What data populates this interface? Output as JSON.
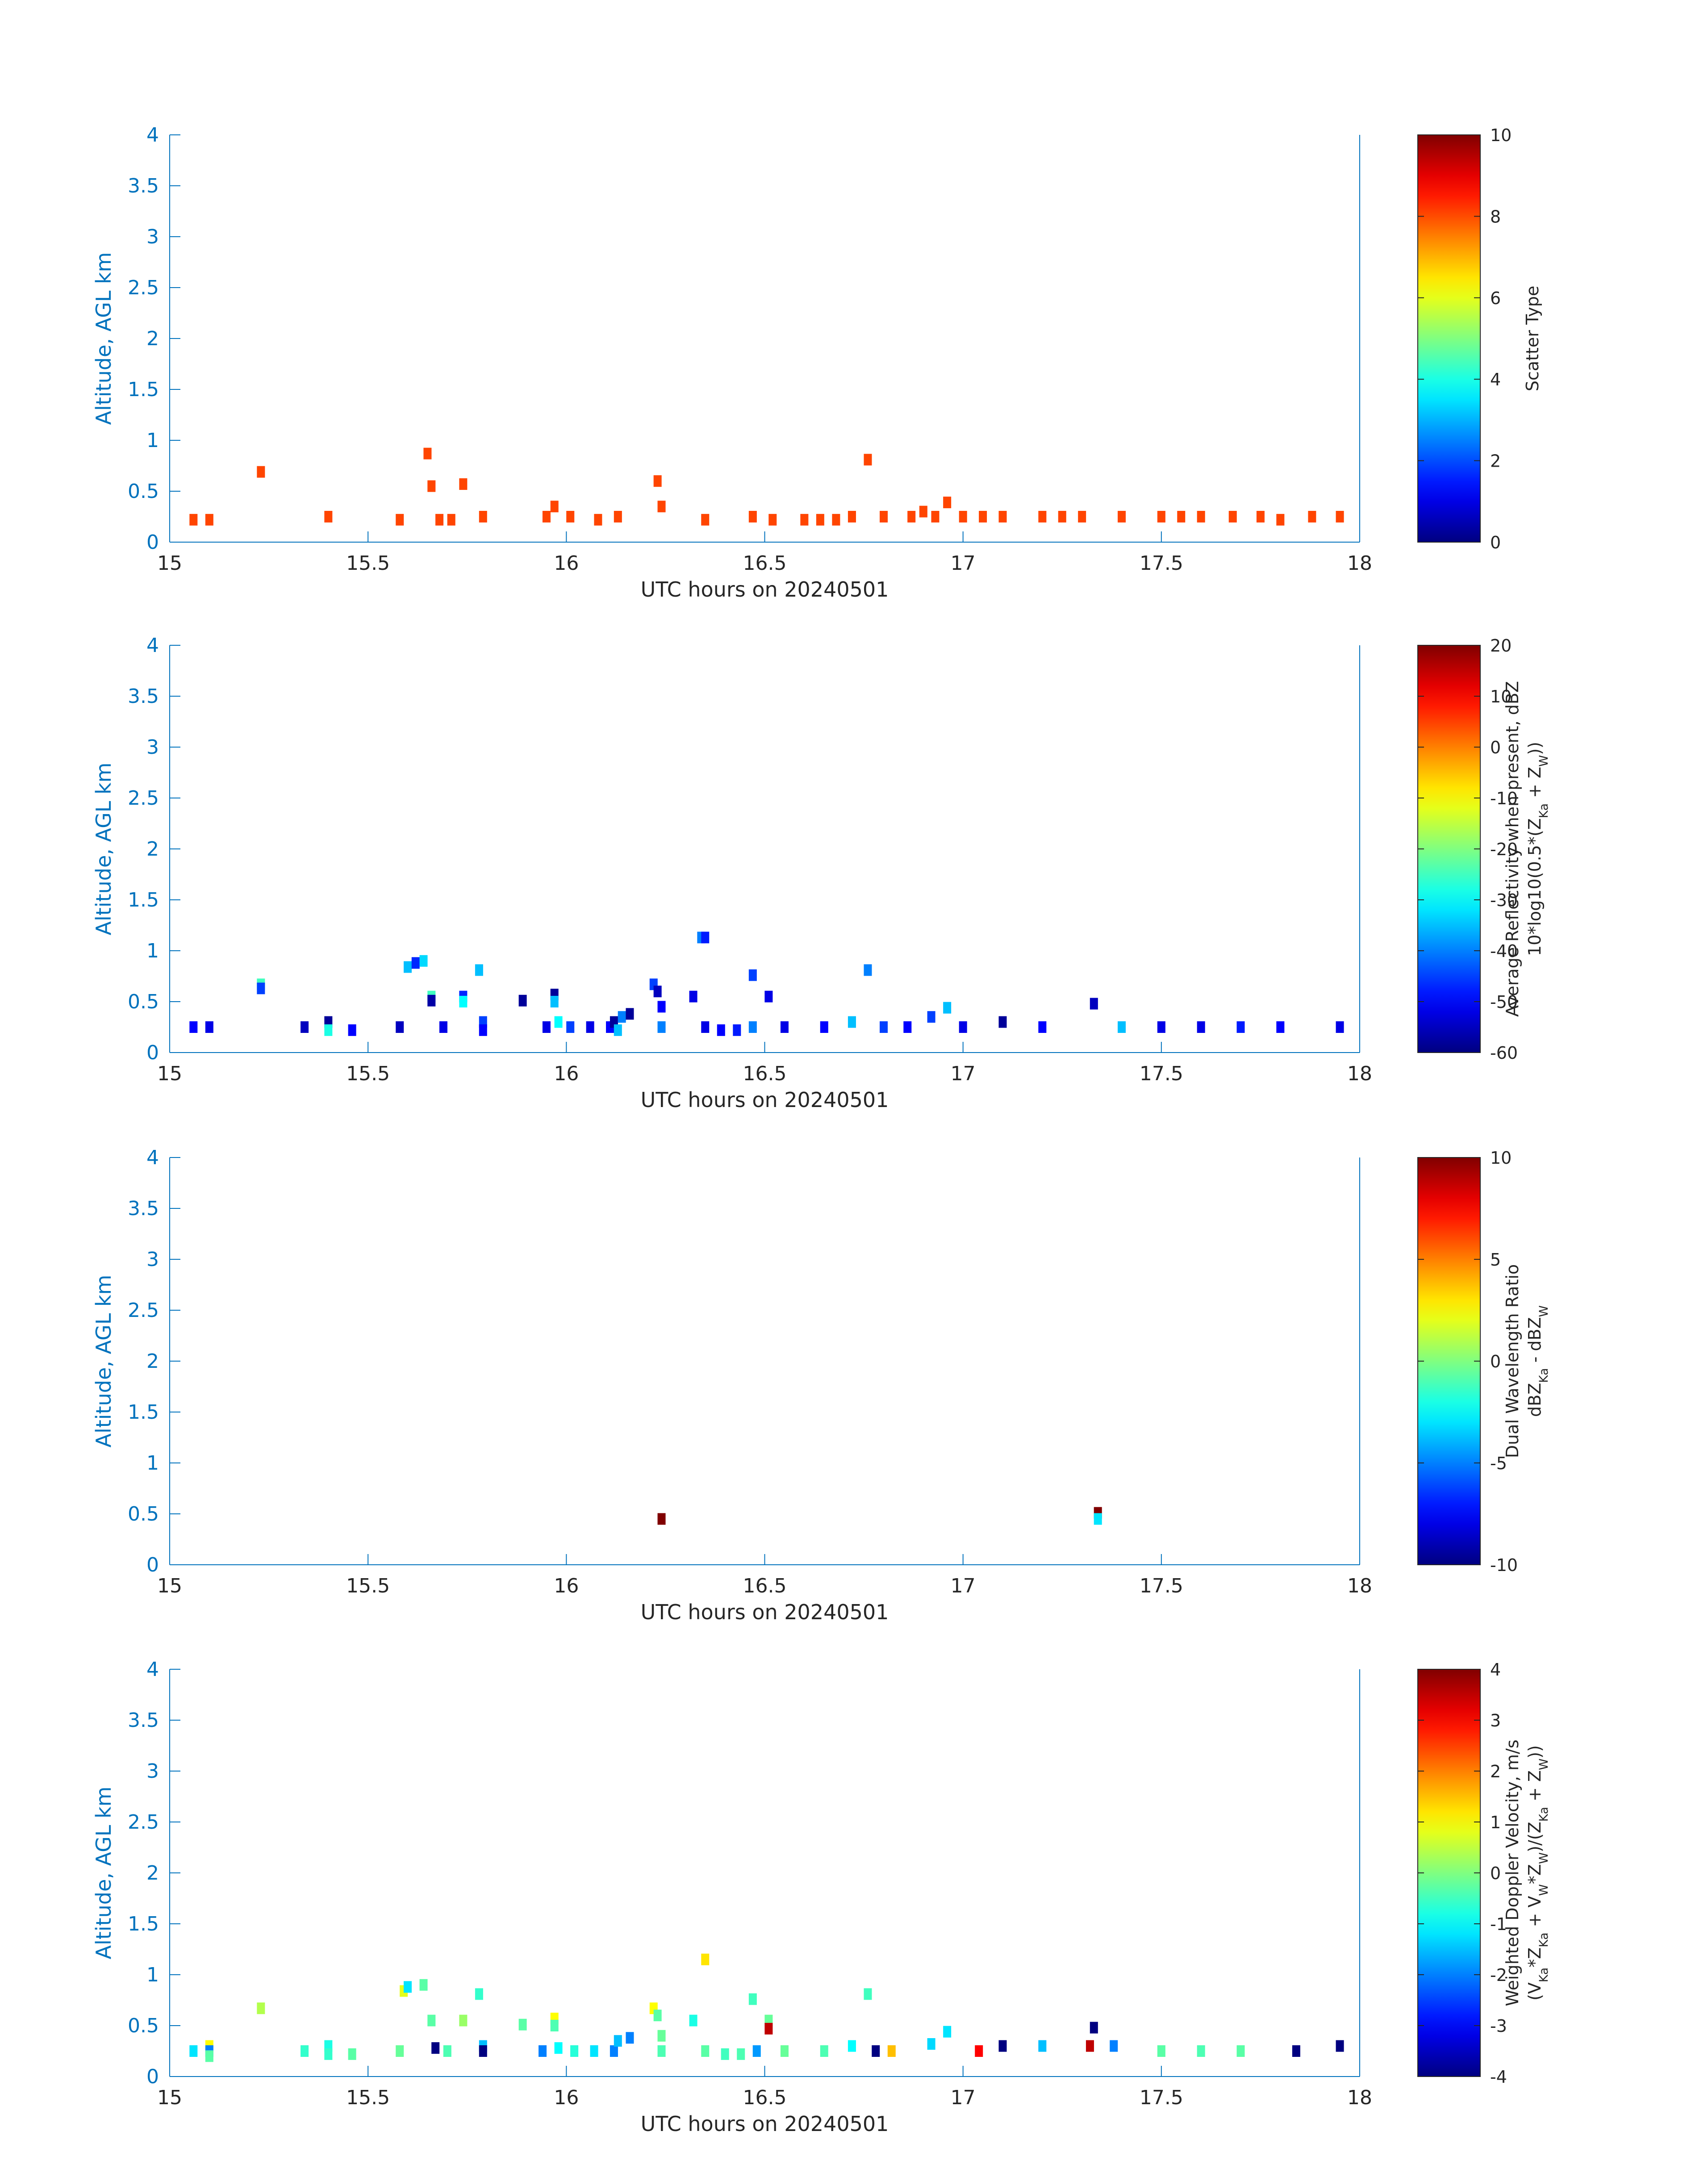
{
  "colors": {
    "axis": "#0072BD",
    "text": "#262626",
    "scatter_type": "#FF4500",
    "background": "#FFFFFF"
  },
  "colormap": "jet",
  "chart_data": [
    {
      "type": "heatmap",
      "id": "scatter-type",
      "xlabel": "UTC hours on 20240501",
      "ylabel": "Altitude, AGL km",
      "xlim": [
        15,
        18
      ],
      "ylim": [
        0,
        4
      ],
      "xticks": [
        "15",
        "15.5",
        "16",
        "16.5",
        "17",
        "17.5",
        "18"
      ],
      "yticks": [
        "0",
        "0.5",
        "1",
        "1.5",
        "2",
        "2.5",
        "3",
        "3.5",
        "4"
      ],
      "grid": false,
      "colorbar": {
        "label_lines": [
          "Scatter Type"
        ],
        "range": [
          0,
          10
        ],
        "ticks": [
          "0",
          "2",
          "4",
          "6",
          "8",
          "10"
        ]
      },
      "cells": [
        [
          15.06,
          0.22,
          8
        ],
        [
          15.1,
          0.22,
          8
        ],
        [
          15.23,
          0.69,
          8
        ],
        [
          15.4,
          0.25,
          8
        ],
        [
          15.58,
          0.22,
          8
        ],
        [
          15.65,
          0.87,
          8
        ],
        [
          15.66,
          0.55,
          8
        ],
        [
          15.68,
          0.22,
          8
        ],
        [
          15.71,
          0.22,
          8
        ],
        [
          15.74,
          0.57,
          8
        ],
        [
          15.79,
          0.25,
          8
        ],
        [
          15.95,
          0.25,
          8
        ],
        [
          15.97,
          0.35,
          8
        ],
        [
          16.01,
          0.25,
          8
        ],
        [
          16.08,
          0.22,
          8
        ],
        [
          16.13,
          0.25,
          8
        ],
        [
          16.23,
          0.6,
          8
        ],
        [
          16.24,
          0.35,
          8
        ],
        [
          16.35,
          0.22,
          8
        ],
        [
          16.47,
          0.25,
          8
        ],
        [
          16.52,
          0.22,
          8
        ],
        [
          16.6,
          0.22,
          8
        ],
        [
          16.64,
          0.22,
          8
        ],
        [
          16.68,
          0.22,
          8
        ],
        [
          16.72,
          0.25,
          8
        ],
        [
          16.76,
          0.81,
          8
        ],
        [
          16.8,
          0.25,
          8
        ],
        [
          16.87,
          0.25,
          8
        ],
        [
          16.9,
          0.3,
          8
        ],
        [
          16.93,
          0.25,
          8
        ],
        [
          16.96,
          0.39,
          8
        ],
        [
          17.0,
          0.25,
          8
        ],
        [
          17.05,
          0.25,
          8
        ],
        [
          17.1,
          0.25,
          8
        ],
        [
          17.2,
          0.25,
          8
        ],
        [
          17.25,
          0.25,
          8
        ],
        [
          17.3,
          0.25,
          8
        ],
        [
          17.4,
          0.25,
          8
        ],
        [
          17.5,
          0.25,
          8
        ],
        [
          17.55,
          0.25,
          8
        ],
        [
          17.6,
          0.25,
          8
        ],
        [
          17.68,
          0.25,
          8
        ],
        [
          17.75,
          0.25,
          8
        ],
        [
          17.8,
          0.22,
          8
        ],
        [
          17.88,
          0.25,
          8
        ],
        [
          17.95,
          0.25,
          8
        ]
      ]
    },
    {
      "type": "heatmap",
      "id": "reflectivity",
      "xlabel": "UTC hours on 20240501",
      "ylabel": "Altitude, AGL km",
      "xlim": [
        15,
        18
      ],
      "ylim": [
        0,
        4
      ],
      "xticks": [
        "15",
        "15.5",
        "16",
        "16.5",
        "17",
        "17.5",
        "18"
      ],
      "yticks": [
        "0",
        "0.5",
        "1",
        "1.5",
        "2",
        "2.5",
        "3",
        "3.5",
        "4"
      ],
      "grid": false,
      "colorbar": {
        "label_lines": [
          "Average Reflectivity when present, dBZ",
          "10*log10(0.5*(Z_Ka + Z_W))"
        ],
        "range": [
          -60,
          20
        ],
        "ticks": [
          "-60",
          "-50",
          "-40",
          "-30",
          "-20",
          "-10",
          "0",
          "10",
          "20"
        ]
      },
      "cells": [
        [
          15.06,
          0.25,
          -50
        ],
        [
          15.1,
          0.25,
          -52
        ],
        [
          15.23,
          0.67,
          -25
        ],
        [
          15.23,
          0.63,
          -45
        ],
        [
          15.34,
          0.25,
          -55
        ],
        [
          15.4,
          0.3,
          -58
        ],
        [
          15.4,
          0.22,
          -28
        ],
        [
          15.46,
          0.22,
          -50
        ],
        [
          15.58,
          0.25,
          -55
        ],
        [
          15.6,
          0.84,
          -35
        ],
        [
          15.62,
          0.88,
          -47
        ],
        [
          15.64,
          0.9,
          -33
        ],
        [
          15.66,
          0.55,
          -25
        ],
        [
          15.66,
          0.51,
          -57
        ],
        [
          15.69,
          0.25,
          -52
        ],
        [
          15.74,
          0.55,
          -47
        ],
        [
          15.74,
          0.5,
          -30
        ],
        [
          15.78,
          0.81,
          -35
        ],
        [
          15.79,
          0.3,
          -45
        ],
        [
          15.79,
          0.22,
          -50
        ],
        [
          15.89,
          0.51,
          -58
        ],
        [
          15.95,
          0.25,
          -52
        ],
        [
          15.97,
          0.57,
          -58
        ],
        [
          15.97,
          0.5,
          -35
        ],
        [
          15.98,
          0.3,
          -30
        ],
        [
          16.01,
          0.25,
          -45
        ],
        [
          16.06,
          0.25,
          -52
        ],
        [
          16.11,
          0.25,
          -50
        ],
        [
          16.12,
          0.3,
          -58
        ],
        [
          16.13,
          0.22,
          -35
        ],
        [
          16.14,
          0.35,
          -40
        ],
        [
          16.16,
          0.38,
          -58
        ],
        [
          16.22,
          0.67,
          -45
        ],
        [
          16.23,
          0.6,
          -55
        ],
        [
          16.24,
          0.45,
          -50
        ],
        [
          16.24,
          0.25,
          -40
        ],
        [
          16.32,
          0.55,
          -52
        ],
        [
          16.34,
          1.13,
          -40
        ],
        [
          16.35,
          1.13,
          -48
        ],
        [
          16.35,
          0.25,
          -52
        ],
        [
          16.39,
          0.22,
          -50
        ],
        [
          16.43,
          0.22,
          -48
        ],
        [
          16.47,
          0.76,
          -45
        ],
        [
          16.47,
          0.25,
          -40
        ],
        [
          16.51,
          0.55,
          -52
        ],
        [
          16.55,
          0.25,
          -52
        ],
        [
          16.65,
          0.25,
          -50
        ],
        [
          16.72,
          0.3,
          -35
        ],
        [
          16.76,
          0.81,
          -40
        ],
        [
          16.8,
          0.25,
          -45
        ],
        [
          16.86,
          0.25,
          -50
        ],
        [
          16.92,
          0.35,
          -45
        ],
        [
          16.96,
          0.44,
          -35
        ],
        [
          17.0,
          0.25,
          -52
        ],
        [
          17.1,
          0.3,
          -58
        ],
        [
          17.2,
          0.25,
          -50
        ],
        [
          17.33,
          0.48,
          -55
        ],
        [
          17.4,
          0.25,
          -35
        ],
        [
          17.5,
          0.25,
          -52
        ],
        [
          17.6,
          0.25,
          -52
        ],
        [
          17.7,
          0.25,
          -48
        ],
        [
          17.8,
          0.25,
          -50
        ],
        [
          17.95,
          0.25,
          -52
        ]
      ]
    },
    {
      "type": "heatmap",
      "id": "dual-wavelength-ratio",
      "xlabel": "UTC hours on 20240501",
      "ylabel": "Altitude, AGL km",
      "xlim": [
        15,
        18
      ],
      "ylim": [
        0,
        4
      ],
      "xticks": [
        "15",
        "15.5",
        "16",
        "16.5",
        "17",
        "17.5",
        "18"
      ],
      "yticks": [
        "0",
        "0.5",
        "1",
        "1.5",
        "2",
        "2.5",
        "3",
        "3.5",
        "4"
      ],
      "grid": false,
      "colorbar": {
        "label_lines": [
          "Dual Wavelength Ratio",
          "dBZ_Ka - dBZ_W"
        ],
        "range": [
          -10,
          10
        ],
        "ticks": [
          "-10",
          "-5",
          "0",
          "5",
          "10"
        ]
      },
      "cells": [
        [
          16.24,
          0.45,
          10
        ],
        [
          17.34,
          0.51,
          10
        ],
        [
          17.34,
          0.45,
          -3
        ]
      ]
    },
    {
      "type": "heatmap",
      "id": "doppler-velocity",
      "xlabel": "UTC hours on 20240501",
      "ylabel": "Altitude, AGL km",
      "xlim": [
        15,
        18
      ],
      "ylim": [
        0,
        4
      ],
      "xticks": [
        "15",
        "15.5",
        "16",
        "16.5",
        "17",
        "17.5",
        "18"
      ],
      "yticks": [
        "0",
        "0.5",
        "1",
        "1.5",
        "2",
        "2.5",
        "3",
        "3.5",
        "4"
      ],
      "grid": false,
      "colorbar": {
        "label_lines": [
          "Weighted Doppler Velocity, m/s",
          "(V_Ka*Z_Ka + V_W*Z_W)/(Z_Ka + Z_W))"
        ],
        "range": [
          -4,
          4
        ],
        "ticks": [
          "-4",
          "-3",
          "-2",
          "-1",
          "0",
          "1",
          "2",
          "3",
          "4"
        ]
      },
      "cells": [
        [
          15.06,
          0.25,
          -1.2
        ],
        [
          15.1,
          0.3,
          1.0
        ],
        [
          15.1,
          0.25,
          -2.0
        ],
        [
          15.1,
          0.2,
          -0.3
        ],
        [
          15.23,
          0.67,
          0.4
        ],
        [
          15.34,
          0.25,
          -0.6
        ],
        [
          15.4,
          0.3,
          -0.8
        ],
        [
          15.4,
          0.22,
          -0.6
        ],
        [
          15.46,
          0.22,
          -0.3
        ],
        [
          15.58,
          0.25,
          -0.2
        ],
        [
          15.59,
          0.84,
          0.8
        ],
        [
          15.6,
          0.88,
          -1.2
        ],
        [
          15.64,
          0.9,
          -0.3
        ],
        [
          15.66,
          0.55,
          -0.3
        ],
        [
          15.67,
          0.28,
          -4.0
        ],
        [
          15.7,
          0.25,
          -0.4
        ],
        [
          15.74,
          0.55,
          0.2
        ],
        [
          15.78,
          0.81,
          -0.6
        ],
        [
          15.79,
          0.3,
          -1.5
        ],
        [
          15.79,
          0.25,
          -4.0
        ],
        [
          15.89,
          0.51,
          -0.3
        ],
        [
          15.94,
          0.25,
          -2.0
        ],
        [
          15.97,
          0.57,
          1.0
        ],
        [
          15.97,
          0.5,
          -0.4
        ],
        [
          15.98,
          0.28,
          -1.0
        ],
        [
          16.02,
          0.25,
          -0.7
        ],
        [
          16.07,
          0.25,
          -1.2
        ],
        [
          16.12,
          0.25,
          -2.0
        ],
        [
          16.13,
          0.35,
          -1.5
        ],
        [
          16.16,
          0.38,
          -2.0
        ],
        [
          16.22,
          0.67,
          1.0
        ],
        [
          16.23,
          0.6,
          -0.3
        ],
        [
          16.24,
          0.4,
          -0.2
        ],
        [
          16.24,
          0.25,
          -0.4
        ],
        [
          16.32,
          0.55,
          -0.8
        ],
        [
          16.35,
          1.15,
          1.2
        ],
        [
          16.35,
          0.25,
          -0.3
        ],
        [
          16.4,
          0.22,
          -0.5
        ],
        [
          16.44,
          0.22,
          -0.4
        ],
        [
          16.47,
          0.76,
          -0.5
        ],
        [
          16.48,
          0.25,
          -1.8
        ],
        [
          16.51,
          0.55,
          -0.2
        ],
        [
          16.51,
          0.47,
          3.5
        ],
        [
          16.55,
          0.25,
          -0.2
        ],
        [
          16.65,
          0.25,
          -0.4
        ],
        [
          16.72,
          0.3,
          -1.0
        ],
        [
          16.76,
          0.81,
          -0.5
        ],
        [
          16.78,
          0.25,
          -4.0
        ],
        [
          16.82,
          0.25,
          1.5
        ],
        [
          16.92,
          0.32,
          -1.3
        ],
        [
          16.96,
          0.44,
          -1.2
        ],
        [
          17.04,
          0.25,
          3.0
        ],
        [
          17.1,
          0.3,
          -4.0
        ],
        [
          17.2,
          0.3,
          -1.5
        ],
        [
          17.33,
          0.48,
          -4.0
        ],
        [
          17.32,
          0.3,
          3.5
        ],
        [
          17.38,
          0.3,
          -2.0
        ],
        [
          17.5,
          0.25,
          -0.3
        ],
        [
          17.6,
          0.25,
          -0.4
        ],
        [
          17.7,
          0.25,
          -0.3
        ],
        [
          17.84,
          0.25,
          -4.0
        ],
        [
          17.95,
          0.3,
          -4.0
        ]
      ]
    }
  ]
}
